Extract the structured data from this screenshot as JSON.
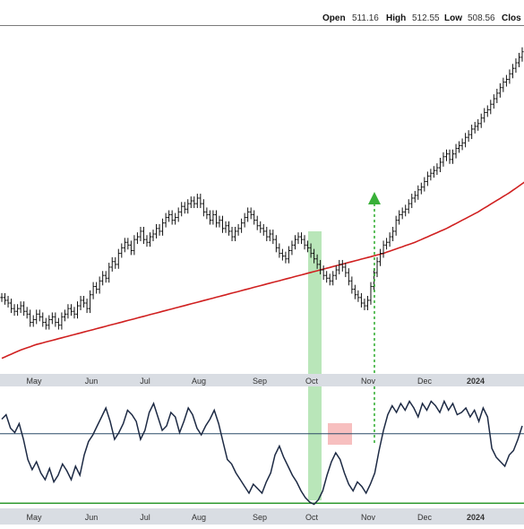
{
  "colors": {
    "background": "#ffffff",
    "panel_border": "#7a7a7a",
    "axis_band": "#d9dde3",
    "price_bar": "#111111",
    "moving_average": "#d02020",
    "oscillator_line": "#1d2a44",
    "oscillator_upper_line": "#2c4c68",
    "oscillator_lower_line": "#2f9a2f",
    "highlight_green": "#7fd17f",
    "highlight_red": "#f08080",
    "arrow_green": "#38b038"
  },
  "header": {
    "open_label": "Open",
    "open_value": "511.16",
    "high_label": "High",
    "high_value": "512.55",
    "low_label": "Low",
    "low_value": "508.56",
    "close_label": "Clos"
  },
  "chart_data": [
    {
      "type": "ohlc",
      "x_axis_labels": [
        "May",
        "Jun",
        "Jul",
        "Aug",
        "Sep",
        "Oct",
        "Nov",
        "Dec",
        "2024"
      ],
      "series": [
        {
          "name": "",
          "kind": "price",
          "values": [
            422,
            421,
            420,
            418,
            417,
            418,
            419,
            417,
            416,
            413,
            414,
            416,
            415,
            413,
            412,
            414,
            415,
            413,
            412,
            415,
            416,
            418,
            417,
            416,
            419,
            421,
            420,
            418,
            423,
            426,
            425,
            428,
            430,
            429,
            433,
            435,
            434,
            438,
            440,
            442,
            441,
            439,
            443,
            444,
            446,
            443,
            442,
            444,
            445,
            447,
            446,
            449,
            451,
            452,
            450,
            451,
            453,
            455,
            454,
            456,
            457,
            456,
            458,
            456,
            453,
            452,
            450,
            452,
            449,
            450,
            447,
            448,
            446,
            444,
            446,
            447,
            449,
            451,
            453,
            452,
            450,
            448,
            447,
            446,
            444,
            445,
            443,
            440,
            438,
            437,
            436,
            439,
            441,
            443,
            444,
            443,
            441,
            440,
            438,
            436,
            434,
            432,
            430,
            429,
            428,
            430,
            432,
            434,
            433,
            431,
            428,
            425,
            423,
            422,
            420,
            419,
            421,
            426,
            431,
            435,
            438,
            441,
            442,
            444,
            446,
            450,
            452,
            453,
            454,
            456,
            458,
            459,
            461,
            462,
            464,
            466,
            467,
            468,
            469,
            471,
            473,
            474,
            472,
            474,
            476,
            477,
            478,
            480,
            481,
            483,
            484,
            485,
            487,
            489,
            490,
            492,
            494,
            496,
            498,
            500,
            501,
            503,
            505,
            507,
            509,
            511
          ]
        },
        {
          "name": "",
          "kind": "moving_average",
          "values": [
            400,
            400.5,
            401,
            401.5,
            402,
            402.5,
            403,
            403.4,
            403.8,
            404.2,
            404.6,
            405,
            405.3,
            405.6,
            405.9,
            406.2,
            406.5,
            406.8,
            407.1,
            407.4,
            407.7,
            408,
            408.3,
            408.6,
            408.9,
            409.2,
            409.5,
            409.8,
            410.1,
            410.4,
            410.7,
            411,
            411.3,
            411.6,
            411.9,
            412.2,
            412.5,
            412.8,
            413.1,
            413.4,
            413.7,
            414,
            414.3,
            414.6,
            414.9,
            415.2,
            415.5,
            415.8,
            416.1,
            416.4,
            416.7,
            417,
            417.3,
            417.6,
            417.9,
            418.2,
            418.5,
            418.8,
            419.1,
            419.4,
            419.7,
            420,
            420.3,
            420.6,
            420.9,
            421.2,
            421.5,
            421.8,
            422.1,
            422.4,
            422.7,
            423,
            423.3,
            423.6,
            423.9,
            424.2,
            424.5,
            424.8,
            425.1,
            425.4,
            425.7,
            426,
            426.3,
            426.6,
            426.9,
            427.2,
            427.5,
            427.8,
            428.1,
            428.4,
            428.7,
            429,
            429.3,
            429.6,
            429.9,
            430.2,
            430.5,
            430.8,
            431.1,
            431.4,
            431.7,
            432,
            432.3,
            432.6,
            432.9,
            433.2,
            433.5,
            433.8,
            434.1,
            434.4,
            434.7,
            435,
            435.3,
            435.6,
            435.9,
            436.2,
            436.5,
            436.8,
            437.1,
            437.4,
            437.7,
            438,
            438.4,
            438.8,
            439.2,
            439.6,
            440,
            440.4,
            440.8,
            441.2,
            441.6,
            442,
            442.5,
            443,
            443.5,
            444,
            444.5,
            445,
            445.5,
            446,
            446.5,
            447,
            447.6,
            448.2,
            448.8,
            449.4,
            450,
            450.6,
            451.2,
            451.8,
            452.4,
            453,
            453.7,
            454.4,
            455.1,
            455.8,
            456.5,
            457.2,
            457.9,
            458.6,
            459.3,
            460,
            460.8,
            461.6,
            462.4,
            463.2,
            464
          ]
        }
      ]
    },
    {
      "type": "line",
      "x_axis_labels": [
        "May",
        "Jun",
        "Jul",
        "Aug",
        "Sep",
        "Oct",
        "Nov",
        "Dec",
        "2024"
      ],
      "ylim": [
        0,
        100
      ],
      "reference_lines": {
        "upper": 65,
        "lower": 3
      },
      "series": [
        {
          "name": "",
          "values": [
            78,
            82,
            70,
            66,
            74,
            60,
            42,
            33,
            40,
            30,
            24,
            34,
            22,
            28,
            38,
            32,
            24,
            36,
            28,
            46,
            58,
            64,
            72,
            80,
            88,
            76,
            60,
            66,
            74,
            86,
            82,
            76,
            60,
            68,
            84,
            92,
            80,
            68,
            72,
            84,
            80,
            66,
            76,
            88,
            82,
            70,
            64,
            72,
            78,
            86,
            74,
            58,
            42,
            38,
            30,
            24,
            18,
            12,
            20,
            16,
            12,
            22,
            30,
            46,
            54,
            44,
            36,
            28,
            22,
            14,
            8,
            4,
            2,
            6,
            14,
            28,
            40,
            48,
            42,
            30,
            20,
            14,
            22,
            18,
            12,
            20,
            30,
            50,
            68,
            82,
            90,
            84,
            92,
            86,
            94,
            88,
            80,
            92,
            86,
            94,
            90,
            84,
            94,
            86,
            92,
            82,
            84,
            88,
            80,
            86,
            76,
            88,
            80,
            52,
            44,
            40,
            36,
            46,
            50,
            60,
            72
          ]
        }
      ]
    }
  ]
}
